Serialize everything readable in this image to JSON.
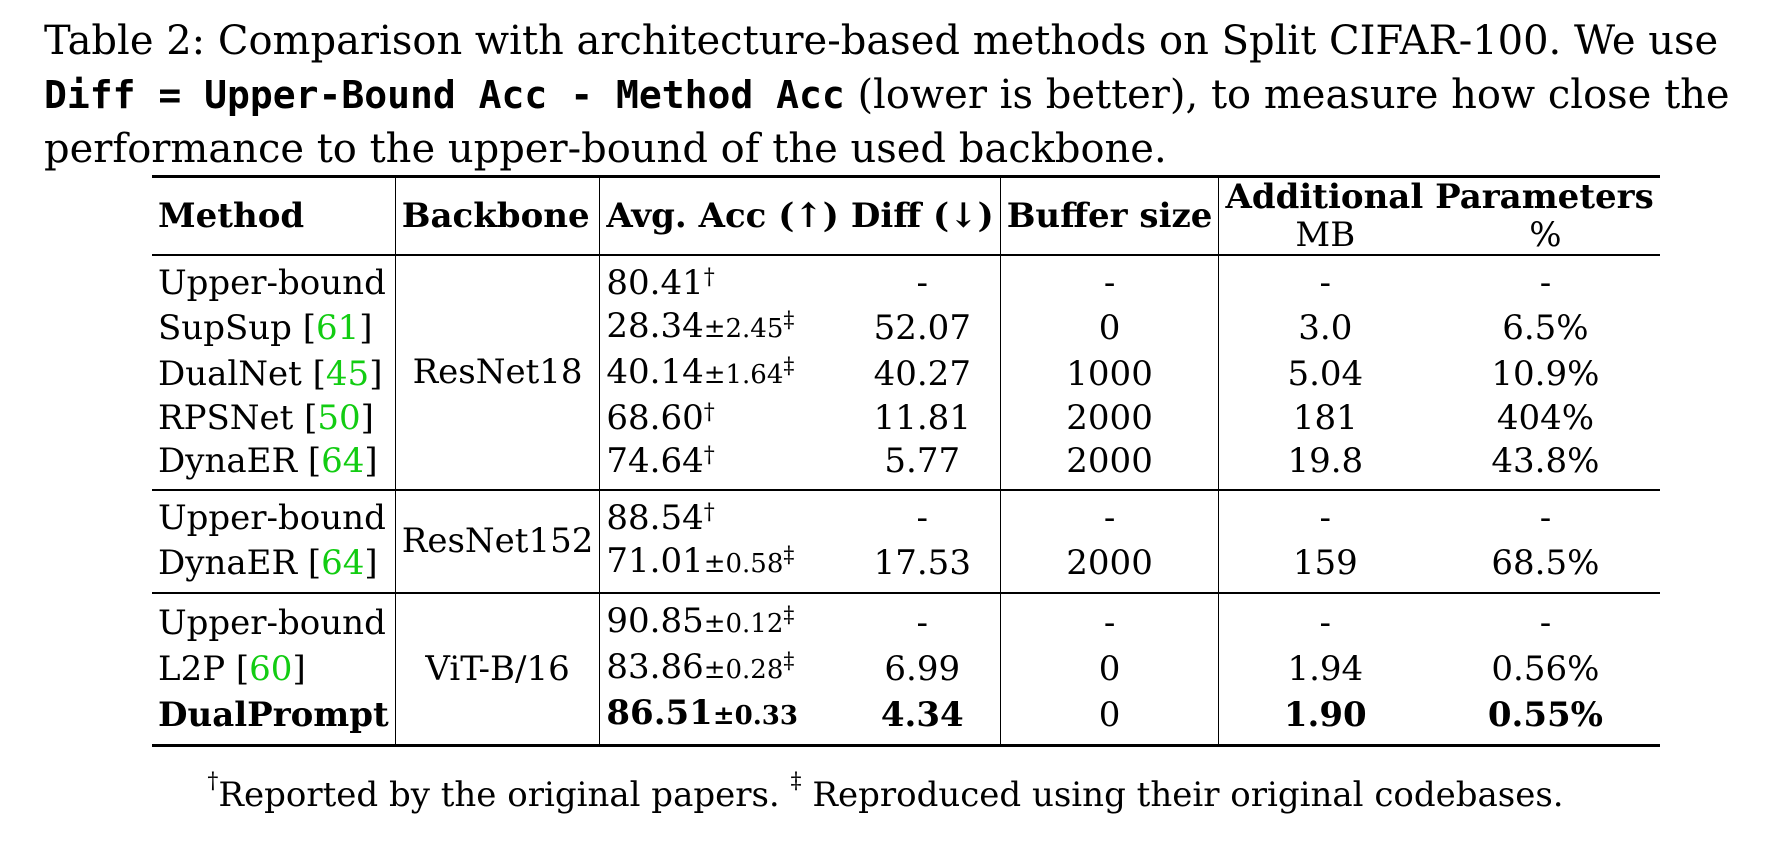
{
  "caption": {
    "line1": "Table 2: Comparison with architecture-based methods on Split CIFAR-100. We use",
    "line2_code": "Diff = Upper-Bound Acc - Method Acc",
    "line2_text": " (lower is better), to measure how close the",
    "line3": "performance to the upper-bound of the used backbone."
  },
  "headers": {
    "method": "Method",
    "backbone": "Backbone",
    "avg_acc": "Avg. Acc (↑)",
    "diff": "Diff (↓)",
    "buffer": "Buffer size",
    "additional": "Additional Parameters",
    "mb": "MB",
    "pct": "%"
  },
  "groups": [
    {
      "backbone": "ResNet18",
      "rows": [
        {
          "method": "Upper-bound",
          "ref": "",
          "acc": "80.41",
          "pm": "",
          "mark": "†",
          "diff": "-",
          "buffer": "-",
          "mb": "-",
          "pct": "-"
        },
        {
          "method": "SupSup ",
          "ref": "61",
          "acc": "28.34",
          "pm": "±2.45",
          "mark": "‡",
          "diff": "52.07",
          "buffer": "0",
          "mb": "3.0",
          "pct": "6.5%"
        },
        {
          "method": "DualNet ",
          "ref": "45",
          "acc": "40.14",
          "pm": "±1.64",
          "mark": "‡",
          "diff": "40.27",
          "buffer": "1000",
          "mb": "5.04",
          "pct": "10.9%"
        },
        {
          "method": "RPSNet ",
          "ref": "50",
          "acc": "68.60",
          "pm": "",
          "mark": "†",
          "diff": "11.81",
          "buffer": "2000",
          "mb": "181",
          "pct": "404%"
        },
        {
          "method": "DynaER ",
          "ref": "64",
          "acc": "74.64",
          "pm": "",
          "mark": "†",
          "diff": "5.77",
          "buffer": "2000",
          "mb": "19.8",
          "pct": "43.8%"
        }
      ]
    },
    {
      "backbone": "ResNet152",
      "rows": [
        {
          "method": "Upper-bound",
          "ref": "",
          "acc": "88.54",
          "pm": "",
          "mark": "†",
          "diff": "-",
          "buffer": "-",
          "mb": "-",
          "pct": "-"
        },
        {
          "method": "DynaER ",
          "ref": "64",
          "acc": "71.01",
          "pm": "±0.58",
          "mark": "‡",
          "diff": "17.53",
          "buffer": "2000",
          "mb": "159",
          "pct": "68.5%"
        }
      ]
    },
    {
      "backbone": "ViT-B/16",
      "rows": [
        {
          "method": "Upper-bound",
          "ref": "",
          "acc": "90.85",
          "pm": "±0.12",
          "mark": "‡",
          "diff": "-",
          "buffer": "-",
          "mb": "-",
          "pct": "-"
        },
        {
          "method": "L2P ",
          "ref": "60",
          "acc": "83.86",
          "pm": "±0.28",
          "mark": "‡",
          "diff": "6.99",
          "buffer": "0",
          "mb": "1.94",
          "pct": "0.56%"
        },
        {
          "method": "DualPrompt",
          "ref": "",
          "acc": "86.51",
          "pm": "±0.33",
          "mark": "",
          "diff": "4.34",
          "buffer": "0",
          "mb": "1.90",
          "pct": "0.55%",
          "bold": true
        }
      ]
    }
  ],
  "footnote": {
    "mark1": "†",
    "text1": "Reported by the original papers. ",
    "mark2": "‡",
    "text2": " Reproduced using their original codebases."
  }
}
